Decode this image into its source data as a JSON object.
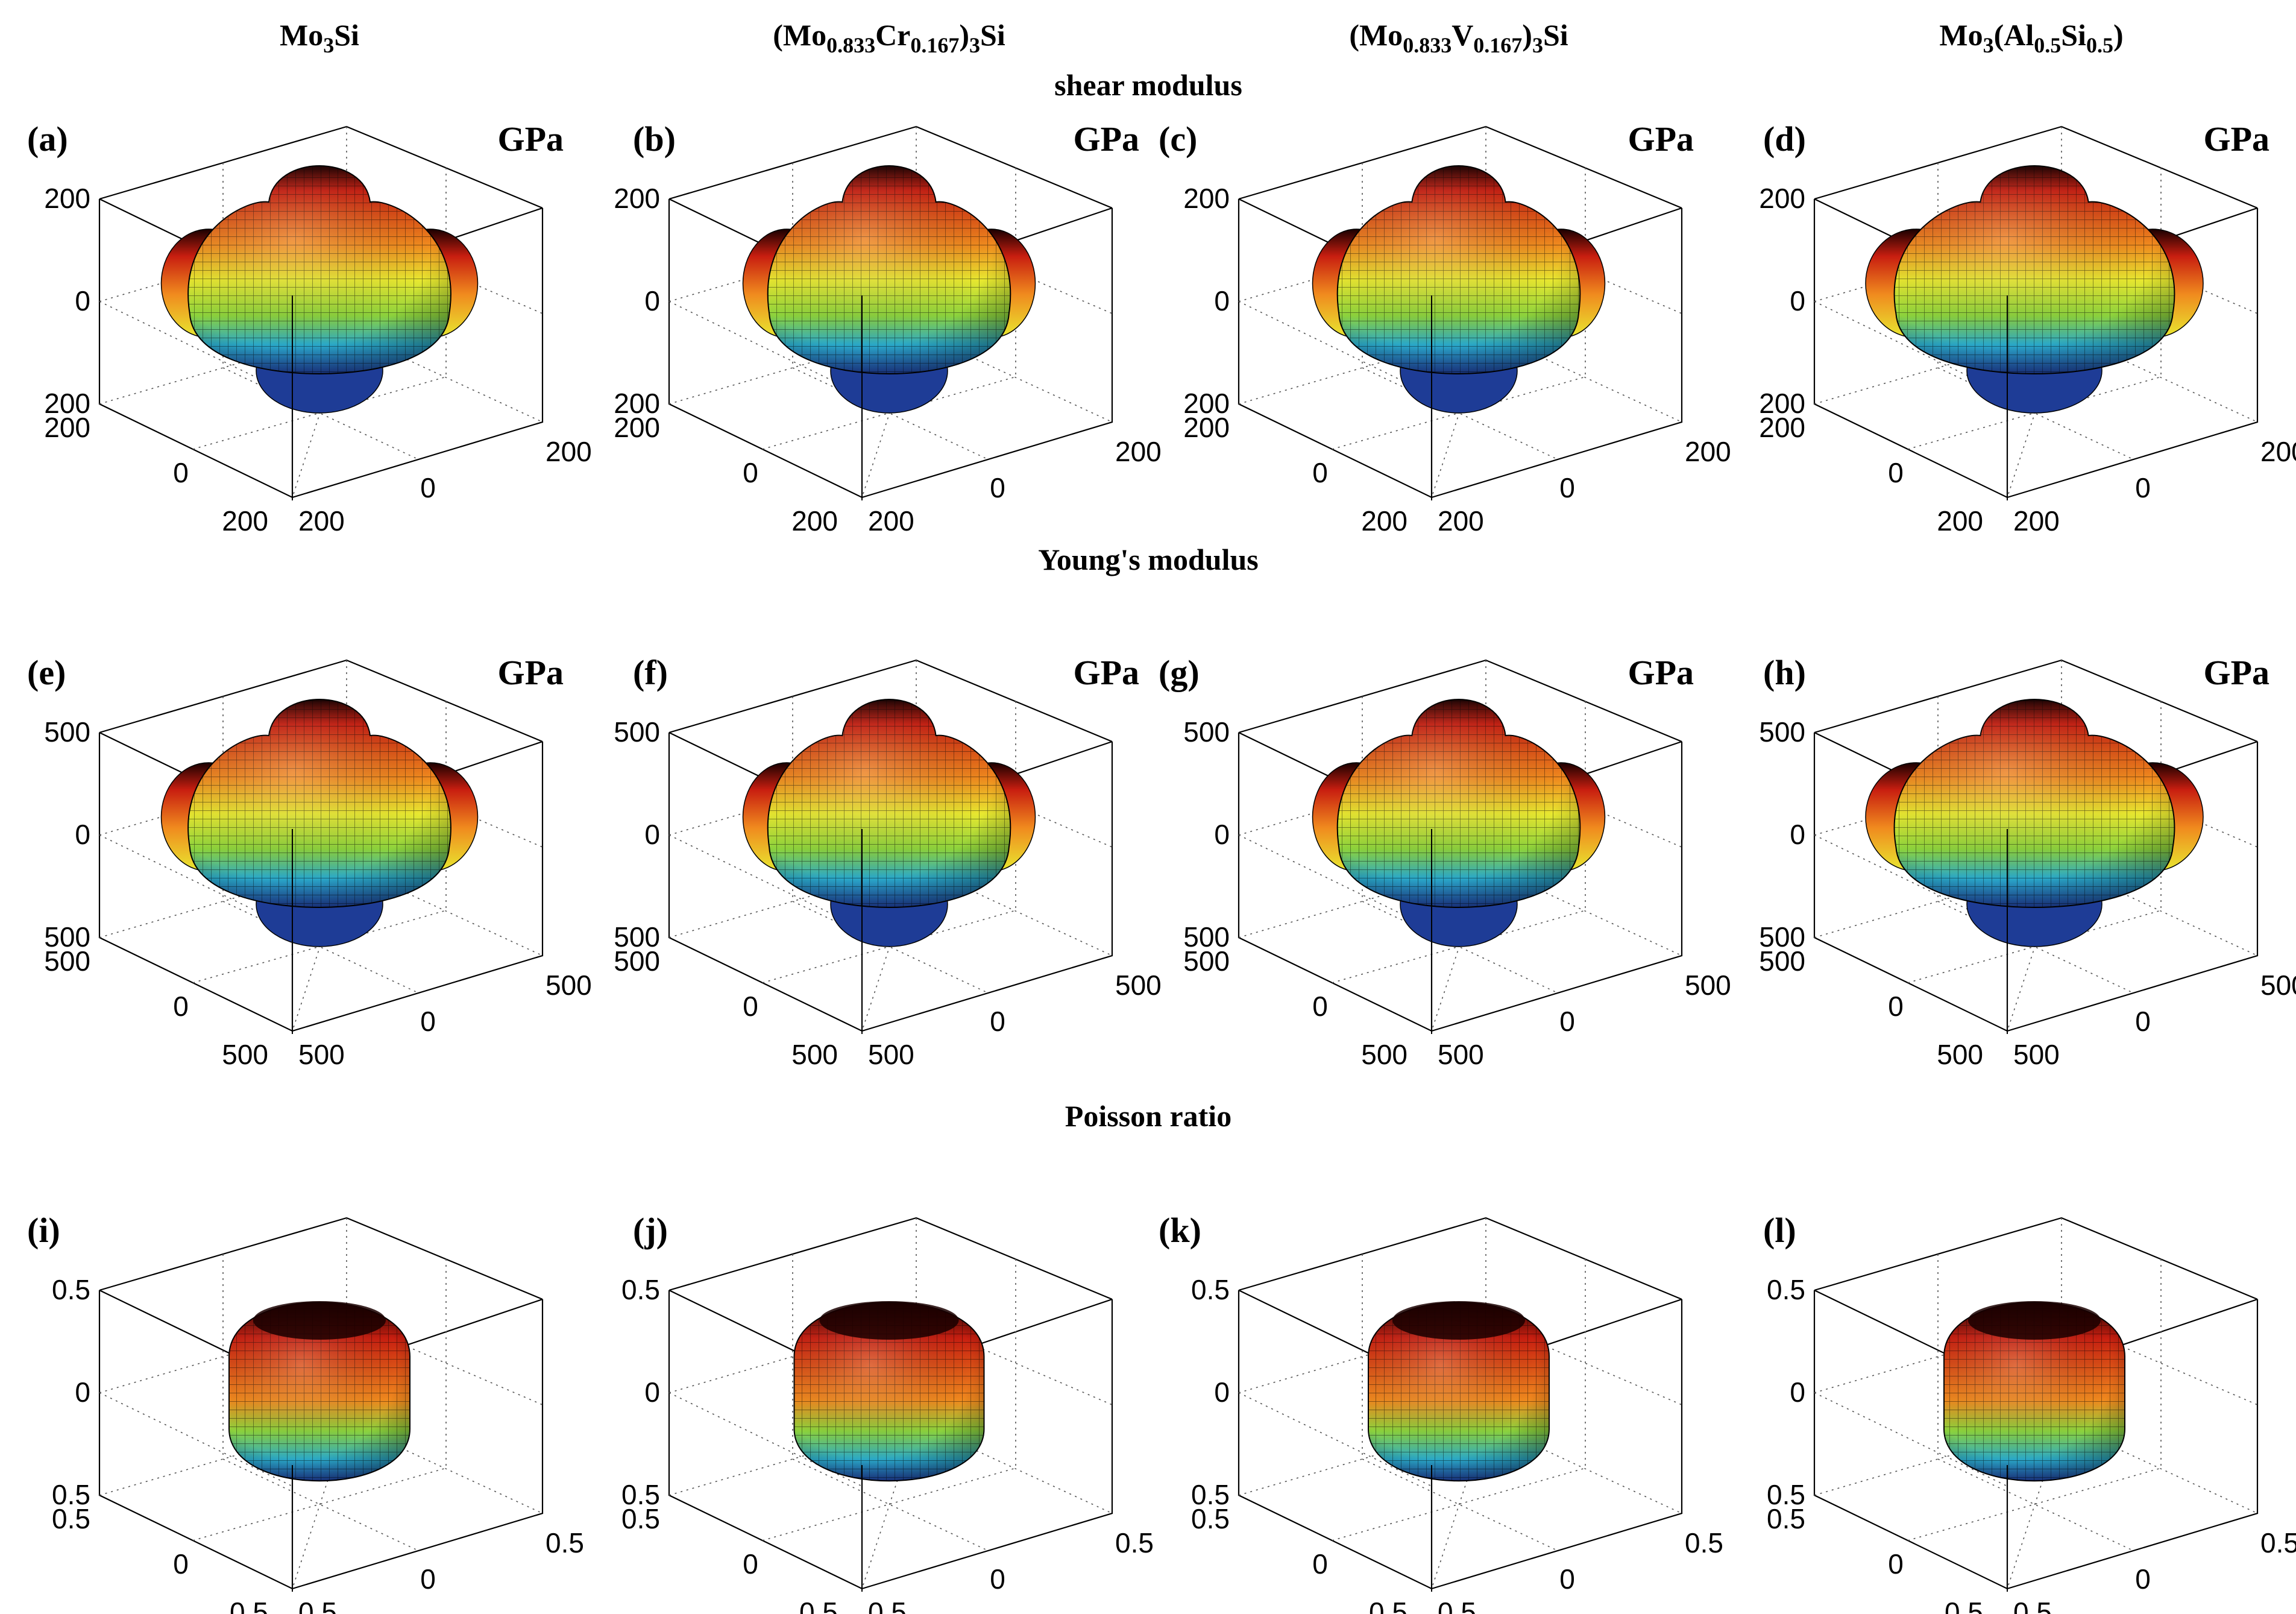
{
  "columns": [
    {
      "base": "Mo",
      "parts": [
        [
          "Mo",
          "n"
        ],
        [
          "3",
          "sub"
        ],
        [
          "Si",
          "n"
        ]
      ]
    },
    {
      "parts": [
        [
          "(Mo",
          "n"
        ],
        [
          "0.833",
          "sub"
        ],
        [
          "Cr",
          "n"
        ],
        [
          "0.167",
          "sub"
        ],
        [
          ")",
          "n"
        ],
        [
          "3",
          "sub"
        ],
        [
          "Si",
          "n"
        ]
      ]
    },
    {
      "parts": [
        [
          "(Mo",
          "n"
        ],
        [
          "0.833",
          "sub"
        ],
        [
          "V",
          "n"
        ],
        [
          "0.167",
          "sub"
        ],
        [
          ")",
          "n"
        ],
        [
          "3",
          "sub"
        ],
        [
          "Si",
          "n"
        ]
      ]
    },
    {
      "parts": [
        [
          "Mo",
          "n"
        ],
        [
          "3",
          "sub"
        ],
        [
          "(Al",
          "n"
        ],
        [
          "0.5",
          "sub"
        ],
        [
          "Si",
          "n"
        ],
        [
          "0.5",
          "sub"
        ],
        [
          ")",
          "n"
        ]
      ]
    }
  ],
  "rows": [
    {
      "title": "shear modulus",
      "unit": "GPa",
      "tick": "200",
      "zero": "0",
      "labels": [
        "(a)",
        "(b)",
        "(c)",
        "(d)"
      ]
    },
    {
      "title": "Young's modulus",
      "unit": "GPa",
      "tick": "500",
      "zero": "0",
      "labels": [
        "(e)",
        "(f)",
        "(g)",
        "(h)"
      ]
    },
    {
      "title": "Poisson ratio",
      "unit": "",
      "tick": "0.5",
      "zero": "0",
      "labels": [
        "(i)",
        "(j)",
        "(k)",
        "(l)"
      ]
    }
  ],
  "colors": {
    "surface_top": "#1a0000",
    "surface_red": "#c81e10",
    "surface_orange": "#f08a1e",
    "surface_yellow": "#e8e830",
    "surface_green": "#8cd23c",
    "surface_cyan": "#2aa8c8",
    "surface_blue": "#1e3c96",
    "mesh": "#000000",
    "box": "#000000"
  }
}
